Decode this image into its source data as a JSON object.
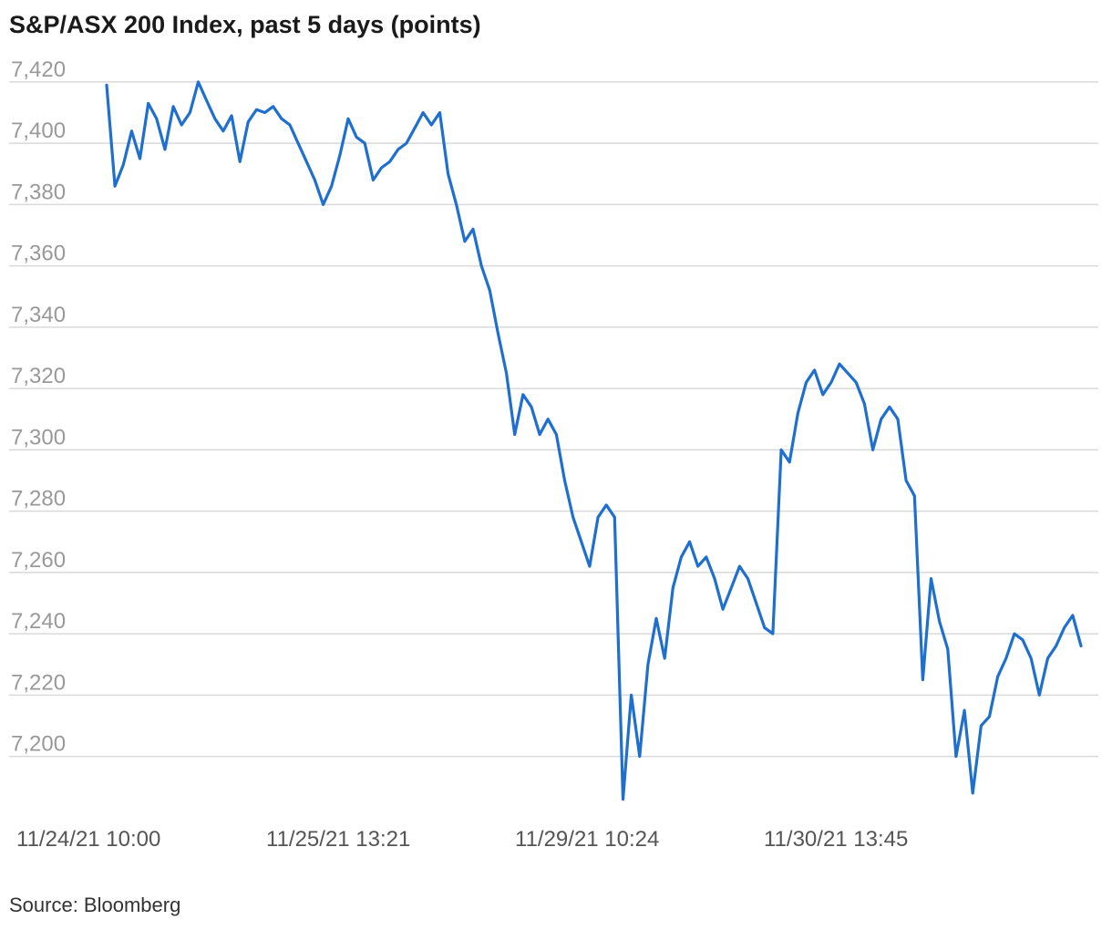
{
  "chart_data": {
    "type": "line",
    "title": "S&P/ASX 200 Index, past 5 days (points)",
    "source": "Source: Bloomberg",
    "ylim": [
      7185,
      7428
    ],
    "yticks": [
      7200,
      7220,
      7240,
      7260,
      7280,
      7300,
      7320,
      7340,
      7360,
      7380,
      7400,
      7420
    ],
    "ytick_labels": [
      "7,200",
      "7,220",
      "7,240",
      "7,260",
      "7,280",
      "7,300",
      "7,320",
      "7,340",
      "7,360",
      "7,380",
      "7,400",
      "7,420"
    ],
    "xtick_labels": [
      "11/24/21 10:00",
      "11/25/21 13:21",
      "11/29/21 10:24",
      "11/30/21 13:45"
    ],
    "xtick_index": [
      0,
      10,
      20,
      30
    ],
    "grid": true,
    "color": "#1f6fce",
    "series": [
      {
        "values": [
          7419,
          7386,
          7393,
          7404,
          7395,
          7413,
          7408,
          7398,
          7412,
          7406,
          7410,
          7420,
          7414,
          7408,
          7404,
          7409,
          7394,
          7407,
          7411,
          7410,
          7412,
          7408,
          7406,
          7400,
          7394,
          7388,
          7380,
          7386,
          7396,
          7408,
          7402,
          7400,
          7388,
          7392,
          7394,
          7398,
          7400,
          7405,
          7410,
          7406,
          7410,
          7390,
          7380,
          7368,
          7372,
          7360,
          7352,
          7338,
          7325,
          7305,
          7318,
          7314,
          7305,
          7310,
          7305,
          7290,
          7278,
          7270,
          7262,
          7278,
          7282,
          7278,
          7186,
          7220,
          7200,
          7230,
          7245,
          7232,
          7255,
          7265,
          7270,
          7262,
          7265,
          7258,
          7248,
          7255,
          7262,
          7258,
          7250,
          7242,
          7240,
          7300,
          7296,
          7312,
          7322,
          7326,
          7318,
          7322,
          7328,
          7325,
          7322,
          7315,
          7300,
          7310,
          7314,
          7310,
          7290,
          7285,
          7225,
          7258,
          7244,
          7235,
          7200,
          7215,
          7188,
          7210,
          7213,
          7226,
          7232,
          7240,
          7238,
          7232,
          7220,
          7232,
          7236,
          7242,
          7246,
          7236
        ]
      }
    ]
  }
}
